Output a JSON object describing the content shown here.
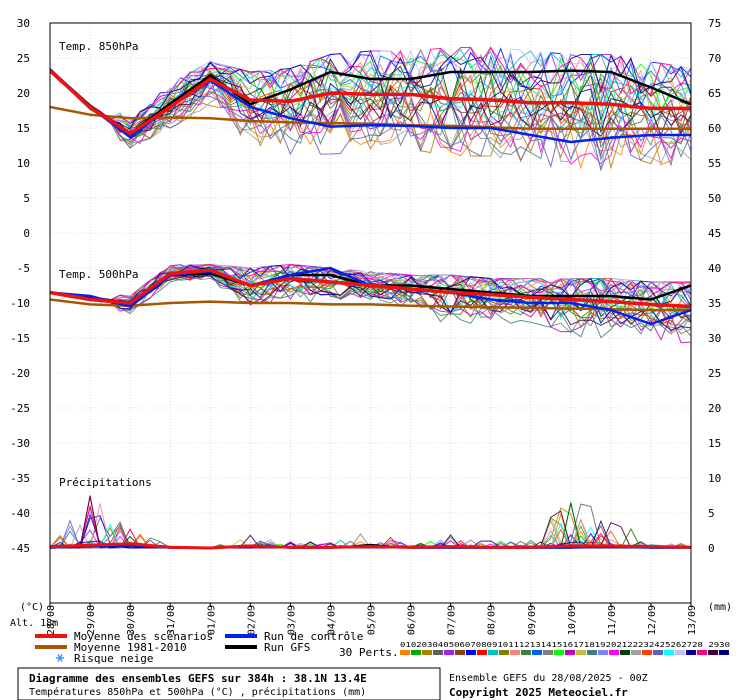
{
  "chart_data": {
    "type": "line",
    "x": [
      "28/08",
      "29/08",
      "30/08",
      "31/08",
      "01/09",
      "02/09",
      "03/09",
      "04/09",
      "05/09",
      "06/09",
      "07/09",
      "08/09",
      "09/09",
      "10/09",
      "11/09",
      "12/09",
      "13/09"
    ],
    "x_unit": "(mm)",
    "y_unit_left": "(°C)",
    "left_ticks": [
      30,
      25,
      20,
      15,
      10,
      5,
      0,
      -5,
      -10,
      -15,
      -20,
      -25,
      -30,
      -35,
      -40,
      -45
    ],
    "right_ticks": [
      75,
      70,
      65,
      60,
      55,
      50,
      45,
      40,
      35,
      30,
      25,
      20,
      15,
      10,
      5,
      0
    ],
    "ylim_left": [
      -50,
      30
    ],
    "panels": [
      {
        "label": "Temp. 850hPa",
        "mean_scenarios": [
          23.2,
          18,
          14.2,
          18,
          22,
          19,
          18.8,
          20,
          19.8,
          19.8,
          19.2,
          19,
          18.6,
          18.6,
          18.4,
          17.8,
          17.8
        ],
        "mean_1981_2010": [
          18,
          16.9,
          16.4,
          16.5,
          16.4,
          16,
          15.8,
          15.7,
          15.6,
          15.4,
          15.3,
          15.1,
          14.9,
          14.9,
          14.9,
          14.9,
          14.9
        ],
        "control_run": [
          23.4,
          18,
          13.7,
          18,
          21.8,
          18,
          16.4,
          15.2,
          15.4,
          15.3,
          15,
          15,
          14,
          13,
          13.6,
          14,
          14
        ],
        "gfs_run": [
          23.3,
          18.2,
          14.2,
          18.5,
          22.5,
          18.4,
          20.5,
          23,
          22,
          22,
          23,
          23,
          23,
          23.2,
          23,
          20.8,
          18.4
        ],
        "envelope_max": [
          25,
          20.5,
          16,
          21.5,
          24.5,
          23,
          23.5,
          25.5,
          26,
          26,
          26.5,
          26.5,
          26,
          25.5,
          25.5,
          24.5,
          23.5
        ],
        "envelope_min": [
          22,
          16,
          12,
          15,
          18,
          12,
          11,
          11,
          12,
          12,
          11,
          11,
          10,
          9,
          9,
          9.5,
          10
        ]
      },
      {
        "label": "Temp. 500hPa",
        "mean_scenarios": [
          -8.5,
          -9.5,
          -10,
          -5.8,
          -5.3,
          -7.5,
          -6.5,
          -7,
          -7.5,
          -8,
          -8.5,
          -8.8,
          -9.2,
          -9.5,
          -9.8,
          -10.2,
          -10.5
        ],
        "mean_1981_2010": [
          -9.5,
          -10.2,
          -10.4,
          -10,
          -9.8,
          -10,
          -10,
          -10.2,
          -10.2,
          -10.4,
          -10.5,
          -10.6,
          -10.7,
          -10.8,
          -10.9,
          -11,
          -11
        ],
        "control_run": [
          -8.5,
          -9,
          -10.5,
          -6,
          -5.5,
          -7.5,
          -6,
          -5,
          -7.5,
          -8,
          -8.5,
          -9.5,
          -10,
          -10,
          -11,
          -13,
          -11
        ],
        "gfs_run": [
          -8.5,
          -9.2,
          -10,
          -6,
          -5.8,
          -7.5,
          -6,
          -6,
          -7.5,
          -7.5,
          -8,
          -8.5,
          -9,
          -9,
          -9,
          -9.5,
          -7.5
        ],
        "envelope_max": [
          -7.5,
          -8.5,
          -9,
          -4.5,
          -4.5,
          -5,
          -4.5,
          -5,
          -5.5,
          -6,
          -6,
          -6.5,
          -6.5,
          -6.5,
          -6.5,
          -7,
          -7
        ],
        "envelope_min": [
          -10,
          -11,
          -12,
          -7,
          -7,
          -12,
          -10,
          -10,
          -10,
          -11,
          -15,
          -14,
          -13,
          -16,
          -15,
          -16,
          -17
        ]
      },
      {
        "label": "Précipitations",
        "right_scale_mm": [
          10,
          5,
          0
        ],
        "mean_scenarios": [
          0.2,
          0.4,
          0.6,
          0.1,
          0,
          0.3,
          0.1,
          0.1,
          0.2,
          0.1,
          0.2,
          0.1,
          0.1,
          0.3,
          0.3,
          0.2,
          0.1
        ],
        "control_run": [
          0,
          0.2,
          0.3,
          0,
          0,
          0.4,
          0,
          0,
          0.1,
          0,
          0,
          0,
          0,
          0,
          0.1,
          0,
          0
        ],
        "gfs_run": [
          0,
          0.2,
          0.3,
          0,
          0,
          0.2,
          0,
          0,
          0.5,
          0,
          0,
          0,
          0,
          0,
          0.3,
          0,
          0
        ],
        "envelope_max": [
          0.5,
          7.5,
          3,
          0.2,
          0,
          2,
          1,
          0.8,
          2.5,
          0.5,
          2,
          1,
          1.5,
          7.5,
          4.5,
          1.2,
          0.5
        ]
      }
    ]
  },
  "labels": {
    "alt": "Alt. 18m",
    "legend_mean_scenarios": "Moyenne des scénarios",
    "legend_mean_1981_2010": "Moyenne 1981-2010",
    "legend_snow_risk": "Risque neige",
    "legend_control_run": "Run de contrôle",
    "legend_gfs_run": "Run GFS",
    "perts_label": "30 Perts.",
    "perts_numbers": "01020304050607080910111213141516171819202122232425262728 2930",
    "info_title": "Diagramme des ensembles GEFS sur 384h : 38.1N 13.4E",
    "info_subtitle": "Températures 850hPa et 500hPa (°C) , précipitations (mm)",
    "ensemble_run": "Ensemble GEFS du 28/08/2025 - 00Z",
    "copyright": "Copyright 2025 Meteociel.fr"
  },
  "colors": {
    "mean_scenarios": "#ee1111",
    "mean_1981_2010": "#aa5500",
    "control_run": "#0022ee",
    "gfs_run": "#000000",
    "grid": "#c0c0c0",
    "perts": [
      "#ff8000",
      "#00aa00",
      "#b08000",
      "#606060",
      "#a020f0",
      "#8b4513",
      "#0000ff",
      "#ff0000",
      "#00c0c0",
      "#808000",
      "#ff8080",
      "#408040",
      "#0060ff",
      "#808080",
      "#00ff00",
      "#c000c0",
      "#c0c040",
      "#408080",
      "#8080ff",
      "#ff00ff",
      "#004000",
      "#a0a0a0",
      "#ff4000",
      "#6060c0",
      "#00ffff",
      "#c0c0ff",
      "#0000a0",
      "#ff0080",
      "#400040",
      "#000080"
    ]
  },
  "icons": {
    "snow": "snowflake-icon"
  }
}
